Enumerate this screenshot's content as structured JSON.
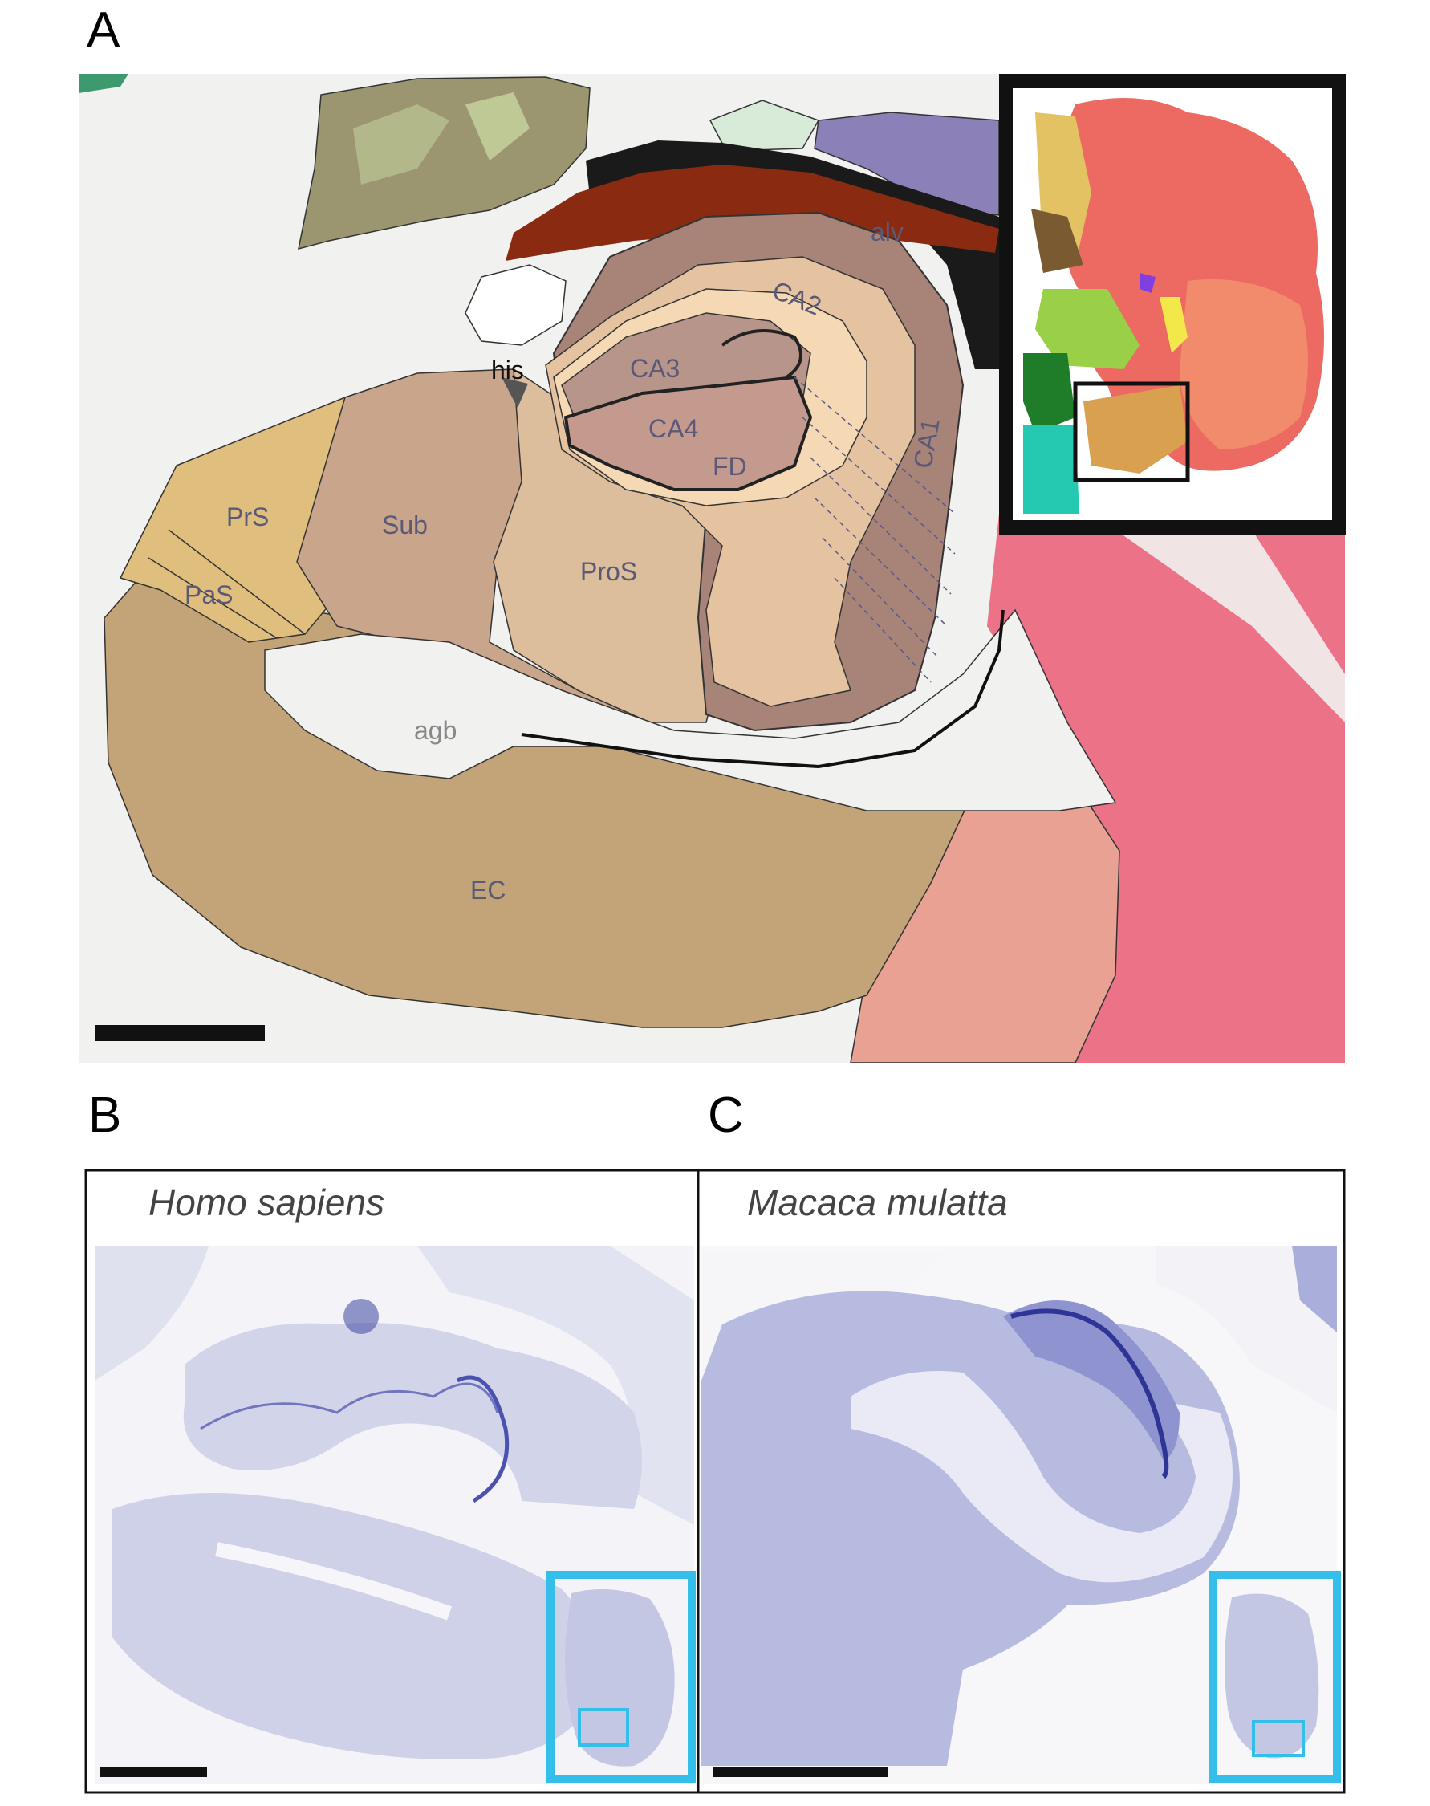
{
  "panels": {
    "a": {
      "letter": "A",
      "labels": {
        "his": "his",
        "alv": "alv",
        "ca1": "CA1",
        "ca2": "CA2",
        "ca3": "CA3",
        "ca4": "CA4",
        "fd": "FD",
        "prs": "PrS",
        "pas": "PaS",
        "sub": "Sub",
        "pros": "ProS",
        "agb": "agb",
        "ec": "EC"
      }
    },
    "b": {
      "letter": "B",
      "species": "Homo sapiens"
    },
    "c": {
      "letter": "C",
      "species": "Macaca mulatta"
    }
  },
  "colors": {
    "ca_dark": "#a88378",
    "ca_mid": "#b8958a",
    "ca_light": "#e5c3a0",
    "ca_lighter": "#f5d9b4",
    "sub": "#c9a58b",
    "pros": "#dcbe9c",
    "prs": "#e0be7e",
    "ec": "#c3a478",
    "pink": "#ec7387",
    "salmon": "#e8a193",
    "rust": "#8a2a10",
    "violet": "#8c80b8",
    "olive": "#9c9670",
    "nissl": "#6f75bf",
    "inset_frame": "#33bfea"
  }
}
